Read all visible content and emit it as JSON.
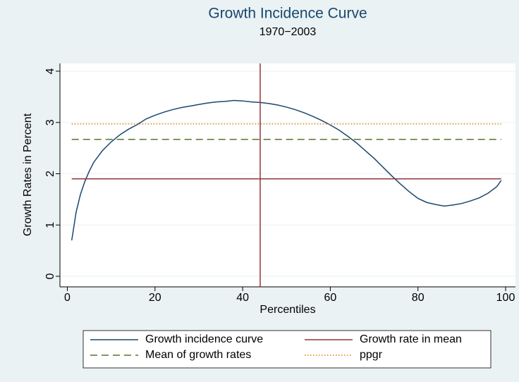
{
  "chart_data": {
    "type": "line",
    "title": "Growth Incidence Curve",
    "subtitle": "1970−2003",
    "x_label": "Percentiles",
    "y_label": "Growth Rates in Percent",
    "xlim": [
      0,
      100
    ],
    "xticks": [
      0,
      20,
      40,
      60,
      80,
      100
    ],
    "ylim": [
      0,
      4
    ],
    "yticks": [
      0,
      1,
      2,
      3,
      4
    ],
    "grid": true,
    "xline": {
      "value": 44,
      "color": "#90353b"
    },
    "series": [
      {
        "name": "Growth incidence curve",
        "color": "#1a476f",
        "style": "solid",
        "x": [
          1,
          2,
          3,
          4,
          5,
          6,
          8,
          10,
          12,
          14,
          16,
          18,
          20,
          22,
          24,
          26,
          28,
          30,
          32,
          34,
          36,
          38,
          40,
          42,
          44,
          46,
          48,
          50,
          52,
          54,
          56,
          58,
          60,
          62,
          64,
          66,
          68,
          70,
          72,
          74,
          76,
          78,
          80,
          82,
          84,
          86,
          88,
          90,
          92,
          94,
          96,
          98,
          99
        ],
        "values": [
          0.7,
          1.25,
          1.6,
          1.85,
          2.05,
          2.22,
          2.45,
          2.62,
          2.76,
          2.87,
          2.96,
          3.07,
          3.14,
          3.2,
          3.25,
          3.29,
          3.32,
          3.35,
          3.38,
          3.4,
          3.41,
          3.43,
          3.42,
          3.4,
          3.39,
          3.37,
          3.34,
          3.3,
          3.25,
          3.19,
          3.12,
          3.04,
          2.95,
          2.85,
          2.73,
          2.6,
          2.45,
          2.3,
          2.13,
          1.96,
          1.8,
          1.65,
          1.52,
          1.44,
          1.4,
          1.37,
          1.39,
          1.42,
          1.47,
          1.53,
          1.62,
          1.75,
          1.87
        ]
      },
      {
        "name": "Growth rate in mean",
        "color": "#90353b",
        "style": "solid",
        "x": [
          1,
          99
        ],
        "values": [
          1.9,
          1.9
        ]
      },
      {
        "name": "Mean of growth rates",
        "color": "#55752f",
        "style": "dashed",
        "x": [
          1,
          99
        ],
        "values": [
          2.67,
          2.67
        ]
      },
      {
        "name": "ppgr",
        "color": "#e37e00",
        "style": "dotted",
        "x": [
          1,
          99
        ],
        "values": [
          2.97,
          2.97
        ]
      }
    ]
  }
}
